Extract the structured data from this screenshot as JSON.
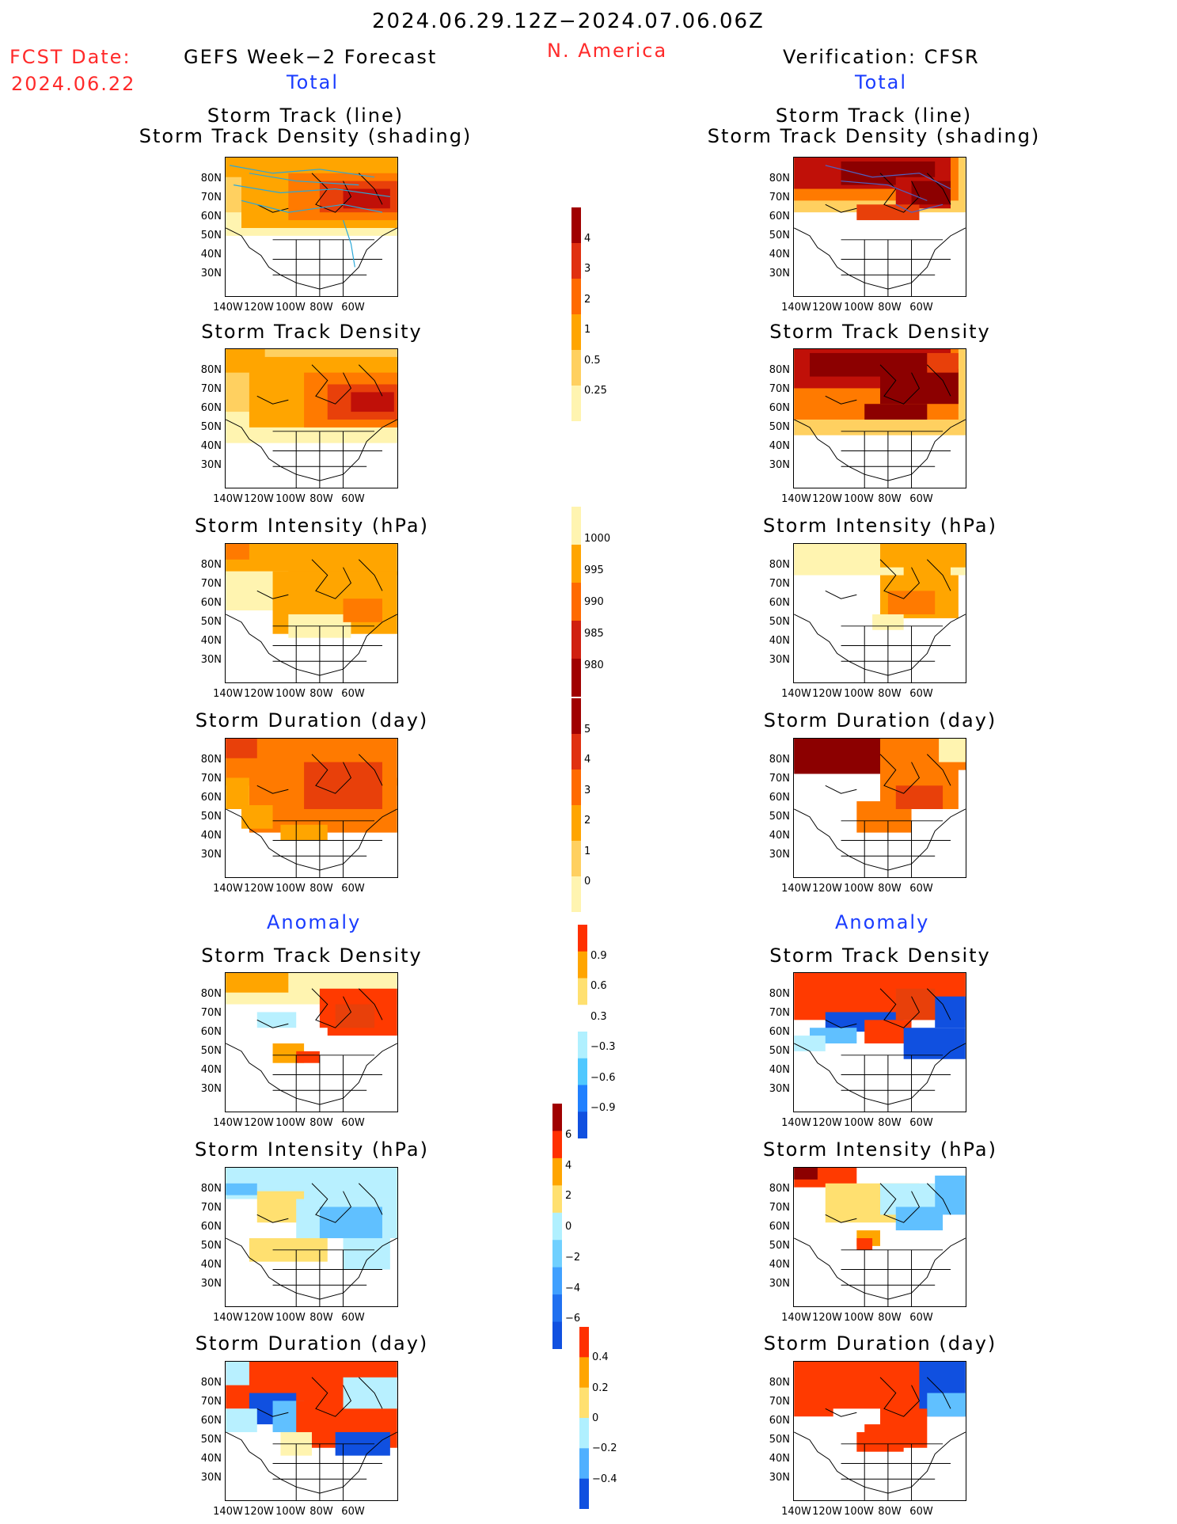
{
  "header": {
    "period": "2024.06.29.12Z−2024.07.06.06Z",
    "region": "N. America",
    "fcst_label": "FCST Date:",
    "fcst_date": "2024.06.22",
    "left_title": "GEFS Week−2 Forecast",
    "right_title": "Verification: CFSR",
    "left_section": "Total",
    "right_section": "Total",
    "anomaly_left": "Anomaly",
    "anomaly_right": "Anomaly"
  },
  "axes": {
    "lat_ticks": [
      "80N",
      "70N",
      "60N",
      "50N",
      "40N",
      "30N"
    ],
    "lon_ticks": [
      "140W",
      "120W",
      "100W",
      "80W",
      "60W"
    ]
  },
  "panels": {
    "track": {
      "title1": "Storm Track (line)",
      "title2": "Storm Track Density (shading)"
    },
    "density": {
      "title": "Storm Track Density"
    },
    "intensity": {
      "title": "Storm Intensity (hPa)"
    },
    "duration": {
      "title": "Storm Duration (day)"
    },
    "a_density": {
      "title": "Storm Track Density"
    },
    "a_intensity": {
      "title": "Storm Intensity (hPa)"
    },
    "a_duration": {
      "title": "Storm Duration (day)"
    }
  },
  "colorbars": {
    "density": {
      "labels": [
        "4",
        "3",
        "2",
        "1",
        "0.5",
        "0.25"
      ],
      "colors": [
        "#a00000",
        "#e03010",
        "#ff6a00",
        "#ffa500",
        "#ffd060",
        "#fff4b0"
      ]
    },
    "intensity": {
      "labels": [
        "1000",
        "995",
        "990",
        "985",
        "980"
      ],
      "colors": [
        "#fff4b0",
        "#ffa500",
        "#ff6a00",
        "#d02010",
        "#a00000"
      ]
    },
    "duration": {
      "labels": [
        "5",
        "4",
        "3",
        "2",
        "1",
        "0"
      ],
      "colors": [
        "#a00000",
        "#e03010",
        "#ff6a00",
        "#ffa500",
        "#ffd060",
        "#fff4b0"
      ]
    },
    "anom_density": {
      "labels": [
        "0.9",
        "0.6",
        "0.3",
        "−0.3",
        "−0.6",
        "−0.9"
      ],
      "colors": [
        "#ff3000",
        "#ffa500",
        "#ffe070",
        "#ffffff",
        "#b0f0ff",
        "#50c8ff",
        "#2080ff",
        "#1050e0"
      ]
    },
    "anom_intensity": {
      "labels": [
        "6",
        "4",
        "2",
        "0",
        "−2",
        "−4",
        "−6"
      ],
      "colors": [
        "#a00000",
        "#ff3000",
        "#ffa500",
        "#ffe070",
        "#b0f0ff",
        "#70d0ff",
        "#40a0ff",
        "#2070f0",
        "#1050e0"
      ]
    },
    "anom_duration": {
      "labels": [
        "0.4",
        "0.2",
        "0",
        "−0.2",
        "−0.4"
      ],
      "colors": [
        "#ff3000",
        "#ffa500",
        "#ffe070",
        "#b0f0ff",
        "#50b0ff",
        "#1050e0"
      ]
    }
  },
  "chart_data": [
    {
      "type": "heatmap",
      "title": "Storm Track (line) / Storm Track Density (shading)",
      "source": "GEFS Week-2 Forecast",
      "section": "Total",
      "color_levels": [
        0.25,
        0.5,
        1,
        2,
        3,
        4
      ]
    },
    {
      "type": "heatmap",
      "title": "Storm Track (line) / Storm Track Density (shading)",
      "source": "Verification: CFSR",
      "section": "Total",
      "color_levels": [
        0.25,
        0.5,
        1,
        2,
        3,
        4
      ]
    },
    {
      "type": "heatmap",
      "title": "Storm Track Density",
      "source": "GEFS Week-2 Forecast",
      "section": "Total",
      "color_levels": [
        0.25,
        0.5,
        1,
        2,
        3,
        4
      ]
    },
    {
      "type": "heatmap",
      "title": "Storm Track Density",
      "source": "Verification: CFSR",
      "section": "Total",
      "color_levels": [
        0.25,
        0.5,
        1,
        2,
        3,
        4
      ]
    },
    {
      "type": "heatmap",
      "title": "Storm Intensity (hPa)",
      "source": "GEFS Week-2 Forecast",
      "section": "Total",
      "color_levels": [
        980,
        985,
        990,
        995,
        1000
      ]
    },
    {
      "type": "heatmap",
      "title": "Storm Intensity (hPa)",
      "source": "Verification: CFSR",
      "section": "Total",
      "color_levels": [
        980,
        985,
        990,
        995,
        1000
      ]
    },
    {
      "type": "heatmap",
      "title": "Storm Duration (day)",
      "source": "GEFS Week-2 Forecast",
      "section": "Total",
      "color_levels": [
        0,
        1,
        2,
        3,
        4,
        5
      ]
    },
    {
      "type": "heatmap",
      "title": "Storm Duration (day)",
      "source": "Verification: CFSR",
      "section": "Total",
      "color_levels": [
        0,
        1,
        2,
        3,
        4,
        5
      ]
    },
    {
      "type": "heatmap",
      "title": "Storm Track Density",
      "source": "GEFS Week-2 Forecast",
      "section": "Anomaly",
      "color_levels": [
        -0.9,
        -0.6,
        -0.3,
        0.3,
        0.6,
        0.9
      ]
    },
    {
      "type": "heatmap",
      "title": "Storm Track Density",
      "source": "Verification: CFSR",
      "section": "Anomaly",
      "color_levels": [
        -0.9,
        -0.6,
        -0.3,
        0.3,
        0.6,
        0.9
      ]
    },
    {
      "type": "heatmap",
      "title": "Storm Intensity (hPa)",
      "source": "GEFS Week-2 Forecast",
      "section": "Anomaly",
      "color_levels": [
        -6,
        -4,
        -2,
        0,
        2,
        4,
        6
      ]
    },
    {
      "type": "heatmap",
      "title": "Storm Intensity (hPa)",
      "source": "Verification: CFSR",
      "section": "Anomaly",
      "color_levels": [
        -6,
        -4,
        -2,
        0,
        2,
        4,
        6
      ]
    },
    {
      "type": "heatmap",
      "title": "Storm Duration (day)",
      "source": "GEFS Week-2 Forecast",
      "section": "Anomaly",
      "color_levels": [
        -0.4,
        -0.2,
        0,
        0.2,
        0.4
      ]
    },
    {
      "type": "heatmap",
      "title": "Storm Duration (day)",
      "source": "Verification: CFSR",
      "section": "Anomaly",
      "color_levels": [
        -0.4,
        -0.2,
        0,
        0.2,
        0.4
      ]
    }
  ]
}
